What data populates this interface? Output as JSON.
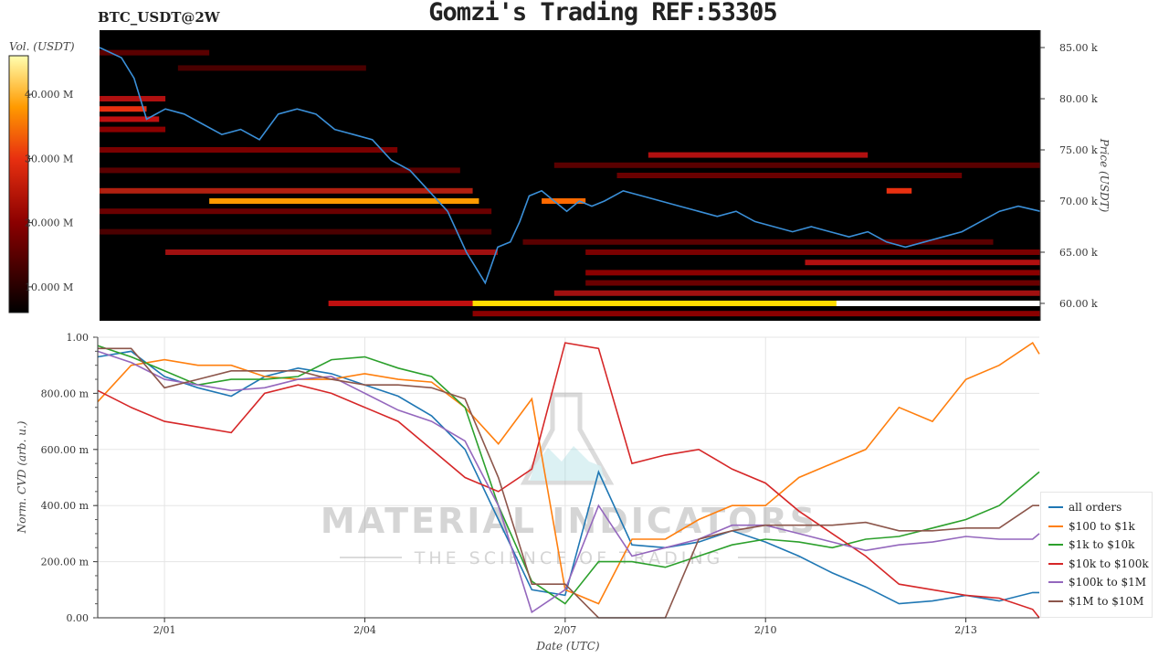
{
  "header": {
    "ticker": "BTC_USDT@2W",
    "title": "Gomzi's Trading REF:53305"
  },
  "colorbar": {
    "label": "Vol. (USDT)",
    "ticks": [
      "10.000 M",
      "20.000 M",
      "30.000 M",
      "40.000 M"
    ],
    "tick_values": [
      10,
      20,
      30,
      40
    ],
    "range": [
      6,
      46
    ]
  },
  "watermark": {
    "line1": "MATERIAL INDICATORS",
    "line2": "THE SCIENCE OF TRADING"
  },
  "colors": {
    "all_orders": "#1f77b4",
    "r100_1k": "#ff7f0e",
    "r1k_10k": "#2ca02c",
    "r10k_100k": "#d62728",
    "r100k_1m": "#9467bd",
    "r1m_10m": "#8c564b",
    "heatmap_bg": "#000000",
    "price_line": "#3a8fd8"
  },
  "chart_data": [
    {
      "type": "heatmap",
      "name": "orderbook-heatmap",
      "ylabel": "Price (USDT)",
      "y_ticks": [
        "60.00 k",
        "65.00 k",
        "70.00 k",
        "75.00 k",
        "80.00 k",
        "85.00 k"
      ],
      "y_tick_values": [
        60000,
        65000,
        70000,
        75000,
        80000,
        85000
      ],
      "ylim": [
        58300,
        86700
      ],
      "x_range_days": [
        -0.75,
        14.25
      ],
      "price_series": {
        "x": [
          -0.75,
          -0.4,
          -0.2,
          0.0,
          0.3,
          0.6,
          0.9,
          1.2,
          1.5,
          1.8,
          2.1,
          2.4,
          2.7,
          3.0,
          3.3,
          3.6,
          3.9,
          4.2,
          4.5,
          4.8,
          5.1,
          5.4,
          5.6,
          5.8,
          5.95,
          6.1,
          6.3,
          6.5,
          6.7,
          6.9,
          7.1,
          7.3,
          7.6,
          7.9,
          8.2,
          8.5,
          8.8,
          9.1,
          9.4,
          9.7,
          10.0,
          10.3,
          10.6,
          10.9,
          11.2,
          11.5,
          11.8,
          12.1,
          12.4,
          12.7,
          13.0,
          13.3,
          13.6,
          13.9,
          14.25
        ],
        "y": [
          85000,
          84000,
          82000,
          78000,
          79000,
          78500,
          77500,
          76500,
          77000,
          76000,
          78500,
          79000,
          78500,
          77000,
          76500,
          76000,
          74000,
          73000,
          71000,
          69000,
          65000,
          62000,
          65500,
          66000,
          68000,
          70500,
          71000,
          70000,
          69000,
          70000,
          69500,
          70000,
          71000,
          70500,
          70000,
          69500,
          69000,
          68500,
          69000,
          68000,
          67500,
          67000,
          67500,
          67000,
          66500,
          67000,
          66000,
          65500,
          66000,
          66500,
          67000,
          68000,
          69000,
          69500,
          69000
        ]
      }
    },
    {
      "type": "line",
      "name": "normalized-cvd",
      "xlabel": "Date (UTC)",
      "ylabel": "Norm. CVD (arb. u.)",
      "x_ticks": [
        "2/01",
        "2/04",
        "2/07",
        "2/10",
        "2/13"
      ],
      "x_tick_days": [
        0,
        3,
        6,
        9,
        12
      ],
      "x_range_days": [
        -1,
        13.1
      ],
      "y_ticks": [
        "0.00",
        "200.00 m",
        "400.00 m",
        "600.00 m",
        "800.00 m",
        "1.00"
      ],
      "y_tick_values": [
        0,
        0.2,
        0.4,
        0.6,
        0.8,
        1.0
      ],
      "ylim": [
        0,
        1
      ],
      "legend_position": "bottom-right",
      "x": [
        -1,
        -0.5,
        0,
        0.5,
        1,
        1.5,
        2,
        2.5,
        3,
        3.5,
        4,
        4.5,
        5,
        5.5,
        6,
        6.5,
        7,
        7.5,
        8,
        8.5,
        9,
        9.5,
        10,
        10.5,
        11,
        11.5,
        12,
        12.5,
        13,
        13.1
      ],
      "series": [
        {
          "name": "all orders",
          "values": [
            0.93,
            0.95,
            0.86,
            0.82,
            0.79,
            0.86,
            0.89,
            0.87,
            0.83,
            0.79,
            0.72,
            0.6,
            0.35,
            0.1,
            0.08,
            0.52,
            0.26,
            0.25,
            0.27,
            0.31,
            0.27,
            0.22,
            0.16,
            0.11,
            0.05,
            0.06,
            0.08,
            0.06,
            0.09,
            0.09
          ]
        },
        {
          "name": "$100 to $1k",
          "values": [
            0.77,
            0.9,
            0.92,
            0.9,
            0.9,
            0.86,
            0.85,
            0.85,
            0.87,
            0.85,
            0.84,
            0.75,
            0.62,
            0.78,
            0.1,
            0.05,
            0.28,
            0.28,
            0.35,
            0.4,
            0.4,
            0.5,
            0.55,
            0.6,
            0.75,
            0.7,
            0.85,
            0.9,
            0.98,
            0.94
          ]
        },
        {
          "name": "$1k to $10k",
          "values": [
            0.97,
            0.93,
            0.88,
            0.83,
            0.85,
            0.85,
            0.86,
            0.92,
            0.93,
            0.89,
            0.86,
            0.75,
            0.4,
            0.13,
            0.05,
            0.2,
            0.2,
            0.18,
            0.22,
            0.26,
            0.28,
            0.27,
            0.25,
            0.28,
            0.29,
            0.32,
            0.35,
            0.4,
            0.5,
            0.52
          ]
        },
        {
          "name": "$10k to $100k",
          "values": [
            0.81,
            0.75,
            0.7,
            0.68,
            0.66,
            0.8,
            0.83,
            0.8,
            0.75,
            0.7,
            0.6,
            0.5,
            0.45,
            0.53,
            0.98,
            0.96,
            0.55,
            0.58,
            0.6,
            0.53,
            0.48,
            0.38,
            0.3,
            0.22,
            0.12,
            0.1,
            0.08,
            0.07,
            0.03,
            0.0
          ]
        },
        {
          "name": "$100k to $1M",
          "values": [
            0.95,
            0.91,
            0.85,
            0.83,
            0.81,
            0.82,
            0.85,
            0.86,
            0.8,
            0.74,
            0.7,
            0.63,
            0.4,
            0.02,
            0.1,
            0.4,
            0.22,
            0.25,
            0.28,
            0.33,
            0.33,
            0.3,
            0.27,
            0.24,
            0.26,
            0.27,
            0.29,
            0.28,
            0.28,
            0.3
          ]
        },
        {
          "name": "$1M to $10M",
          "values": [
            0.96,
            0.96,
            0.82,
            0.85,
            0.88,
            0.88,
            0.88,
            0.85,
            0.83,
            0.83,
            0.82,
            0.78,
            0.5,
            0.12,
            0.12,
            0.0,
            0.0,
            0.0,
            0.28,
            0.31,
            0.33,
            0.33,
            0.33,
            0.34,
            0.31,
            0.31,
            0.32,
            0.32,
            0.4,
            0.4
          ]
        }
      ]
    }
  ]
}
